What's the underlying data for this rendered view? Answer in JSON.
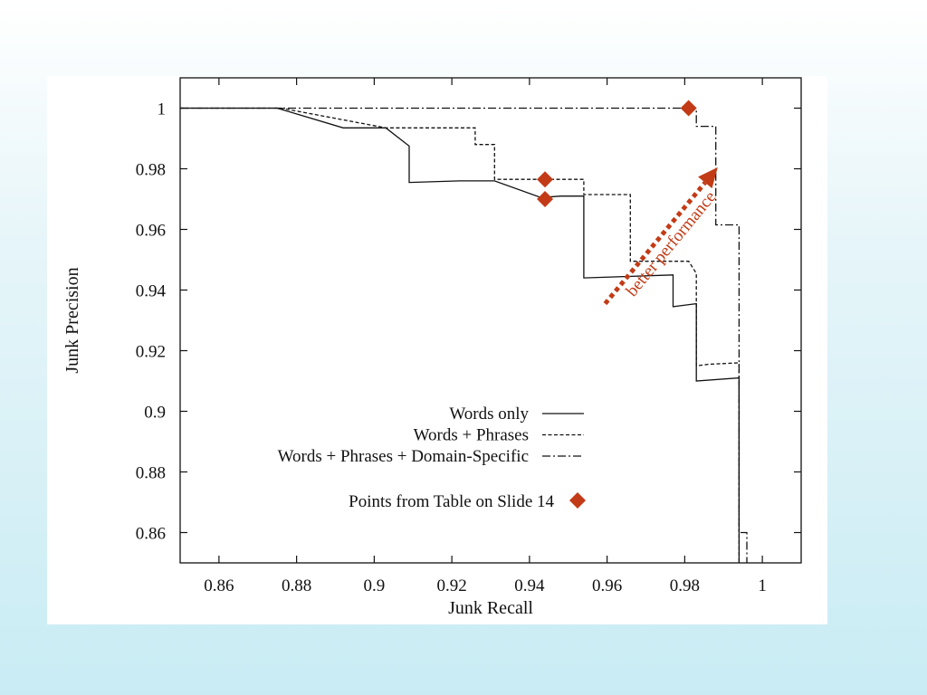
{
  "chart_data": {
    "type": "line",
    "xlabel": "Junk Recall",
    "ylabel": "Junk Precision",
    "xlim": [
      0.85,
      1.01
    ],
    "ylim": [
      0.85,
      1.01
    ],
    "x_ticks": [
      {
        "v": 0.86,
        "label": "0.86"
      },
      {
        "v": 0.88,
        "label": "0.88"
      },
      {
        "v": 0.9,
        "label": "0.9"
      },
      {
        "v": 0.92,
        "label": "0.92"
      },
      {
        "v": 0.94,
        "label": "0.94"
      },
      {
        "v": 0.96,
        "label": "0.96"
      },
      {
        "v": 0.98,
        "label": "0.98"
      },
      {
        "v": 1.0,
        "label": "1"
      }
    ],
    "y_ticks": [
      {
        "v": 0.86,
        "label": "0.86"
      },
      {
        "v": 0.88,
        "label": "0.88"
      },
      {
        "v": 0.9,
        "label": "0.9"
      },
      {
        "v": 0.92,
        "label": "0.92"
      },
      {
        "v": 0.94,
        "label": "0.94"
      },
      {
        "v": 0.96,
        "label": "0.96"
      },
      {
        "v": 0.98,
        "label": "0.98"
      },
      {
        "v": 1.0,
        "label": "1"
      }
    ],
    "grid": false,
    "legend_position": "bottom-center",
    "series": [
      {
        "name": "Words only",
        "style": "solid",
        "points": [
          [
            0.85,
            1.0
          ],
          [
            0.875,
            1.0
          ],
          [
            0.892,
            0.9935
          ],
          [
            0.903,
            0.9935
          ],
          [
            0.909,
            0.9875
          ],
          [
            0.909,
            0.9755
          ],
          [
            0.922,
            0.976
          ],
          [
            0.931,
            0.976
          ],
          [
            0.943,
            0.9705
          ],
          [
            0.948,
            0.971
          ],
          [
            0.954,
            0.971
          ],
          [
            0.954,
            0.944
          ],
          [
            0.977,
            0.945
          ],
          [
            0.977,
            0.9345
          ],
          [
            0.983,
            0.9355
          ],
          [
            0.983,
            0.91
          ],
          [
            0.994,
            0.911
          ],
          [
            0.994,
            0.85
          ]
        ]
      },
      {
        "name": "Words + Phrases",
        "style": "dashed",
        "points": [
          [
            0.85,
            1.0
          ],
          [
            0.876,
            1.0
          ],
          [
            0.903,
            0.9935
          ],
          [
            0.926,
            0.9935
          ],
          [
            0.926,
            0.988
          ],
          [
            0.931,
            0.988
          ],
          [
            0.931,
            0.9765
          ],
          [
            0.939,
            0.9765
          ],
          [
            0.954,
            0.9765
          ],
          [
            0.954,
            0.9715
          ],
          [
            0.966,
            0.9715
          ],
          [
            0.966,
            0.9495
          ],
          [
            0.981,
            0.9495
          ],
          [
            0.983,
            0.9455
          ],
          [
            0.983,
            0.915
          ],
          [
            0.986,
            0.9155
          ],
          [
            0.994,
            0.916
          ],
          [
            0.994,
            0.85
          ]
        ]
      },
      {
        "name": "Words + Phrases + Domain-Specific",
        "style": "dashdot",
        "points": [
          [
            0.85,
            1.0
          ],
          [
            0.983,
            1.0
          ],
          [
            0.983,
            0.994
          ],
          [
            0.988,
            0.994
          ],
          [
            0.988,
            0.9615
          ],
          [
            0.994,
            0.9615
          ],
          [
            0.994,
            0.86
          ],
          [
            0.996,
            0.86
          ],
          [
            0.996,
            0.85
          ]
        ]
      }
    ],
    "highlight_points": {
      "name": "Points from Table on Slide 14",
      "color": "#c23b16",
      "points": [
        [
          0.981,
          1.0
        ],
        [
          0.944,
          0.9765
        ],
        [
          0.944,
          0.97
        ]
      ]
    },
    "annotation": {
      "text": "better performance",
      "color": "#c23b16",
      "arrow_from": [
        0.9595,
        0.9355
      ],
      "arrow_to": [
        0.9885,
        0.9805
      ]
    }
  }
}
